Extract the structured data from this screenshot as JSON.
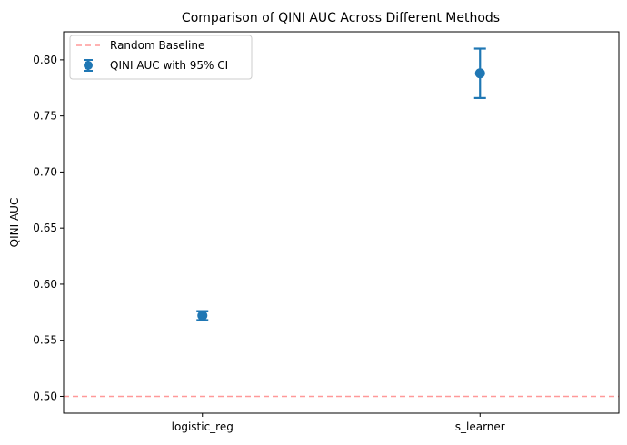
{
  "chart_data": {
    "type": "scatter",
    "title": "Comparison of QINI AUC Across Different Methods",
    "xlabel": "",
    "ylabel": "QINI AUC",
    "categories": [
      "logistic_reg",
      "s_learner"
    ],
    "series": [
      {
        "name": "QINI AUC with 95% CI",
        "values": [
          0.572,
          0.788
        ],
        "ci_lower": [
          0.568,
          0.766
        ],
        "ci_upper": [
          0.576,
          0.81
        ],
        "color": "#1f77b4"
      }
    ],
    "reference_lines": [
      {
        "name": "Random Baseline",
        "y": 0.5,
        "color": "#ff9999",
        "style": "dashed"
      }
    ],
    "ylim": [
      0.485,
      0.825
    ],
    "yticks": [
      "0.50",
      "0.55",
      "0.60",
      "0.65",
      "0.70",
      "0.75",
      "0.80"
    ],
    "grid": false,
    "legend_position": "top-left"
  }
}
